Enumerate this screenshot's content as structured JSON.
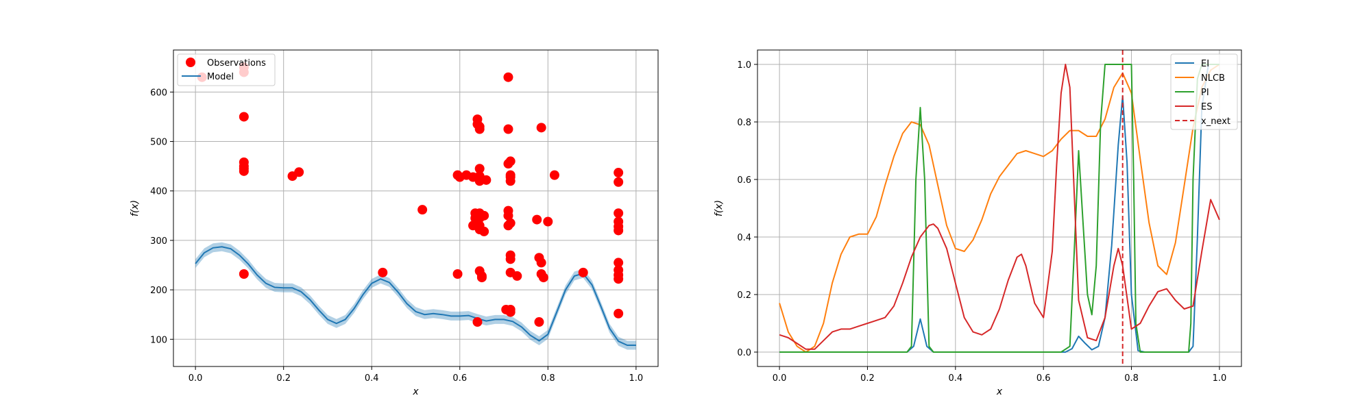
{
  "chart_data": [
    {
      "type": "scatter",
      "xlabel": "x",
      "ylabel": "f(x)",
      "xlim": [
        -0.05,
        1.05
      ],
      "ylim": [
        45,
        685
      ],
      "xticks": [
        0.0,
        0.2,
        0.4,
        0.6,
        0.8,
        1.0
      ],
      "xtick_labels": [
        "0.0",
        "0.2",
        "0.4",
        "0.6",
        "0.8",
        "1.0"
      ],
      "yticks": [
        100,
        200,
        300,
        400,
        500,
        600
      ],
      "ytick_labels": [
        "100",
        "200",
        "300",
        "400",
        "500",
        "600"
      ],
      "grid": true,
      "legend_position": "upper-left",
      "legend": [
        {
          "label": "Observations",
          "color": "#ff0000",
          "marker": "circle"
        },
        {
          "label": "Model",
          "color": "#1f77b4",
          "marker": "line"
        }
      ],
      "observations": {
        "color": "#ff0000",
        "x": [
          0.015,
          0.11,
          0.11,
          0.11,
          0.11,
          0.11,
          0.11,
          0.11,
          0.11,
          0.22,
          0.235,
          0.425,
          0.515,
          0.595,
          0.595,
          0.6,
          0.615,
          0.63,
          0.63,
          0.635,
          0.635,
          0.64,
          0.64,
          0.64,
          0.645,
          0.645,
          0.645,
          0.645,
          0.645,
          0.645,
          0.645,
          0.645,
          0.645,
          0.645,
          0.65,
          0.65,
          0.655,
          0.655,
          0.66,
          0.705,
          0.71,
          0.71,
          0.71,
          0.71,
          0.71,
          0.71,
          0.715,
          0.715,
          0.715,
          0.715,
          0.715,
          0.715,
          0.715,
          0.715,
          0.715,
          0.715,
          0.73,
          0.775,
          0.78,
          0.78,
          0.785,
          0.785,
          0.785,
          0.79,
          0.8,
          0.815,
          0.88,
          0.96,
          0.96,
          0.96,
          0.96,
          0.96,
          0.96,
          0.96,
          0.96,
          0.96,
          0.96,
          0.96
        ],
        "y": [
          630,
          640,
          650,
          550,
          458,
          450,
          445,
          440,
          232,
          430,
          438,
          235,
          362,
          432,
          232,
          428,
          432,
          428,
          330,
          345,
          355,
          135,
          545,
          535,
          530,
          525,
          445,
          430,
          420,
          355,
          345,
          330,
          322,
          238,
          228,
          225,
          350,
          318,
          422,
          160,
          330,
          630,
          525,
          455,
          360,
          350,
          460,
          432,
          428,
          420,
          335,
          270,
          262,
          235,
          155,
          160,
          228,
          342,
          135,
          265,
          255,
          232,
          528,
          225,
          338,
          432,
          235,
          437,
          418,
          355,
          338,
          328,
          320,
          255,
          240,
          230,
          222,
          152
        ]
      },
      "model": {
        "name": "Model",
        "color": "#1f77b4",
        "x": [
          0.0,
          0.02,
          0.04,
          0.06,
          0.08,
          0.1,
          0.12,
          0.14,
          0.16,
          0.18,
          0.2,
          0.22,
          0.24,
          0.26,
          0.28,
          0.3,
          0.32,
          0.34,
          0.36,
          0.38,
          0.4,
          0.42,
          0.44,
          0.46,
          0.48,
          0.5,
          0.52,
          0.54,
          0.56,
          0.58,
          0.6,
          0.62,
          0.64,
          0.66,
          0.68,
          0.7,
          0.72,
          0.74,
          0.76,
          0.78,
          0.8,
          0.82,
          0.84,
          0.86,
          0.88,
          0.9,
          0.92,
          0.94,
          0.96,
          0.98,
          1.0
        ],
        "y": [
          253,
          275,
          285,
          287,
          283,
          270,
          252,
          230,
          213,
          205,
          204,
          204,
          196,
          180,
          159,
          140,
          132,
          140,
          162,
          190,
          213,
          222,
          215,
          195,
          172,
          156,
          150,
          152,
          150,
          147,
          147,
          148,
          142,
          137,
          140,
          140,
          136,
          125,
          108,
          97,
          110,
          155,
          200,
          228,
          233,
          210,
          167,
          122,
          96,
          88,
          88
        ],
        "band": 9
      }
    },
    {
      "type": "line",
      "xlabel": "x",
      "ylabel": "f(x)",
      "xlim": [
        -0.05,
        1.05
      ],
      "ylim": [
        -0.05,
        1.05
      ],
      "xticks": [
        0.0,
        0.2,
        0.4,
        0.6,
        0.8,
        1.0
      ],
      "xtick_labels": [
        "0.0",
        "0.2",
        "0.4",
        "0.6",
        "0.8",
        "1.0"
      ],
      "yticks": [
        0.0,
        0.2,
        0.4,
        0.6,
        0.8,
        1.0
      ],
      "ytick_labels": [
        "0.0",
        "0.2",
        "0.4",
        "0.6",
        "0.8",
        "1.0"
      ],
      "grid": true,
      "legend_position": "upper-right",
      "x_next": {
        "label": "x_next",
        "x": 0.78,
        "color": "#d62728",
        "style": "dashed"
      },
      "series": [
        {
          "name": "EI",
          "color": "#1f77b4",
          "x": [
            0.0,
            0.29,
            0.305,
            0.32,
            0.335,
            0.35,
            0.65,
            0.665,
            0.68,
            0.695,
            0.71,
            0.725,
            0.74,
            0.755,
            0.77,
            0.78,
            0.79,
            0.8,
            0.815,
            0.83,
            0.93,
            0.94,
            0.95,
            0.96,
            0.975,
            0.99,
            1.0
          ],
          "y": [
            0.0,
            0.0,
            0.02,
            0.115,
            0.02,
            0.0,
            0.0,
            0.012,
            0.055,
            0.03,
            0.008,
            0.02,
            0.12,
            0.37,
            0.72,
            0.89,
            0.66,
            0.2,
            0.005,
            0.0,
            0.0,
            0.02,
            0.4,
            0.85,
            1.0,
            1.0,
            1.0
          ]
        },
        {
          "name": "NLCB",
          "color": "#ff7f0e",
          "x": [
            0.0,
            0.02,
            0.04,
            0.06,
            0.08,
            0.1,
            0.12,
            0.14,
            0.16,
            0.18,
            0.2,
            0.22,
            0.24,
            0.26,
            0.28,
            0.3,
            0.32,
            0.34,
            0.36,
            0.38,
            0.4,
            0.42,
            0.44,
            0.46,
            0.48,
            0.5,
            0.52,
            0.54,
            0.56,
            0.58,
            0.6,
            0.62,
            0.64,
            0.66,
            0.68,
            0.7,
            0.72,
            0.74,
            0.76,
            0.78,
            0.8,
            0.82,
            0.84,
            0.86,
            0.88,
            0.9,
            0.92,
            0.94,
            0.96,
            0.98,
            1.0
          ],
          "y": [
            0.17,
            0.07,
            0.02,
            0.0,
            0.02,
            0.1,
            0.24,
            0.34,
            0.4,
            0.41,
            0.41,
            0.47,
            0.58,
            0.68,
            0.76,
            0.8,
            0.79,
            0.72,
            0.58,
            0.44,
            0.36,
            0.35,
            0.39,
            0.46,
            0.55,
            0.61,
            0.65,
            0.69,
            0.7,
            0.69,
            0.68,
            0.7,
            0.74,
            0.77,
            0.77,
            0.75,
            0.75,
            0.81,
            0.92,
            0.97,
            0.9,
            0.67,
            0.45,
            0.3,
            0.27,
            0.38,
            0.58,
            0.78,
            0.92,
            0.98,
            1.0
          ]
        },
        {
          "name": "PI",
          "color": "#2ca02c",
          "x": [
            0.0,
            0.29,
            0.3,
            0.31,
            0.32,
            0.33,
            0.34,
            0.35,
            0.64,
            0.66,
            0.67,
            0.68,
            0.69,
            0.7,
            0.71,
            0.72,
            0.73,
            0.74,
            0.8,
            0.805,
            0.81,
            0.82,
            0.93,
            0.935,
            0.94,
            0.95,
            0.96,
            1.0
          ],
          "y": [
            0.0,
            0.0,
            0.02,
            0.6,
            0.85,
            0.6,
            0.02,
            0.0,
            0.0,
            0.02,
            0.35,
            0.7,
            0.45,
            0.2,
            0.13,
            0.3,
            0.8,
            1.0,
            1.0,
            0.6,
            0.1,
            0.0,
            0.0,
            0.1,
            0.6,
            0.95,
            1.0,
            1.0
          ]
        },
        {
          "name": "ES",
          "color": "#d62728",
          "x": [
            0.0,
            0.02,
            0.04,
            0.06,
            0.08,
            0.1,
            0.12,
            0.14,
            0.16,
            0.18,
            0.2,
            0.22,
            0.24,
            0.26,
            0.28,
            0.3,
            0.32,
            0.34,
            0.35,
            0.36,
            0.38,
            0.4,
            0.42,
            0.44,
            0.46,
            0.48,
            0.5,
            0.52,
            0.54,
            0.55,
            0.56,
            0.58,
            0.6,
            0.62,
            0.63,
            0.64,
            0.65,
            0.66,
            0.67,
            0.68,
            0.7,
            0.72,
            0.74,
            0.76,
            0.77,
            0.78,
            0.8,
            0.82,
            0.84,
            0.86,
            0.88,
            0.9,
            0.92,
            0.94,
            0.96,
            0.98,
            1.0
          ],
          "y": [
            0.06,
            0.05,
            0.03,
            0.01,
            0.01,
            0.04,
            0.07,
            0.08,
            0.08,
            0.09,
            0.1,
            0.11,
            0.12,
            0.16,
            0.24,
            0.33,
            0.4,
            0.44,
            0.445,
            0.43,
            0.36,
            0.24,
            0.12,
            0.07,
            0.06,
            0.08,
            0.15,
            0.25,
            0.33,
            0.34,
            0.3,
            0.17,
            0.12,
            0.35,
            0.65,
            0.9,
            1.0,
            0.92,
            0.55,
            0.18,
            0.05,
            0.04,
            0.12,
            0.3,
            0.36,
            0.3,
            0.08,
            0.1,
            0.16,
            0.21,
            0.22,
            0.18,
            0.15,
            0.16,
            0.35,
            0.53,
            0.46
          ]
        }
      ]
    }
  ]
}
